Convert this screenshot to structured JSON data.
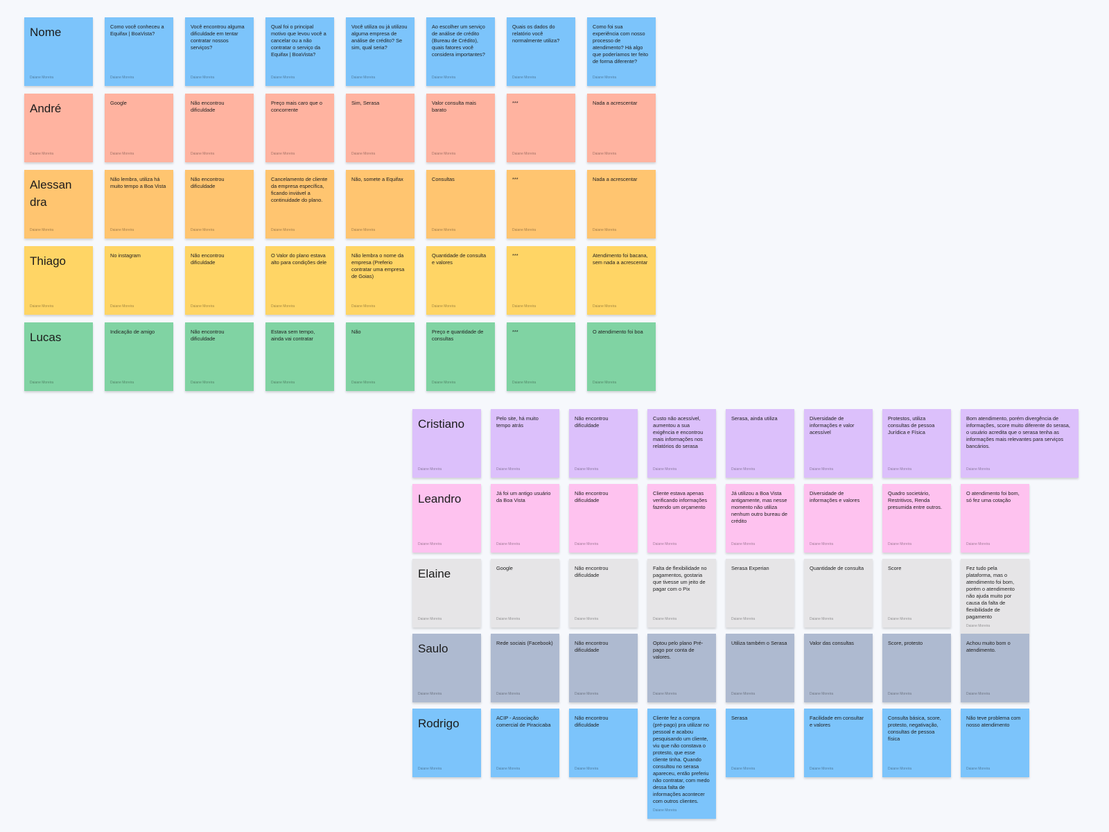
{
  "colors": {
    "blue": "#7cc4fb",
    "salmon": "#ffb3a0",
    "orange": "#ffc570",
    "yellow": "#ffd565",
    "green": "#80d3a3",
    "purple": "#dcc0fb",
    "pink": "#fec2ef",
    "gray": "#e6e5e7",
    "slate": "#aebad0"
  },
  "author": "Daiane Moreira",
  "groups": [
    {
      "rows": [
        {
          "color": "blue",
          "cells": [
            "Nome",
            "Como você conheceu a Equifax | BoaVista?",
            "Você encontrou alguma dificuldade em tentar contratar nossos serviços?",
            "Qual foi o principal motivo que levou você a cancelar ou a não contratar o serviço da Equifax | BoaVista?",
            "Você utiliza ou já utilizou alguma empresa de análise de crédito? Se sim, qual seria?",
            "Ao escolher um serviço de análise de crédito (Bureau de Crédito), quais fatores você considera importantes?",
            "Quais os dados do relatório você normalmente utiliza?",
            "Como foi sua experiência com nosso processo de atendimento? Há algo que poderíamos ter feito de forma diferente?"
          ]
        },
        {
          "color": "salmon",
          "cells": [
            "André",
            "Google",
            "Não encontrou dificuldade",
            "Preço mais caro que o concorrente",
            "Sim, Serasa",
            "Valor consulta mais barato",
            "***",
            "Nada a acrescentar"
          ]
        },
        {
          "color": "orange",
          "cells": [
            "Alessan dra",
            "Não lembra, utiliza há muito tempo a Boa Vista",
            "Não encontrou dificuldade",
            "Cancelamento de cliente da empresa específica, ficando inviável a continuidade do plano.",
            "Não, somete a Equifax",
            "Consultas",
            "***",
            "Nada a acrescentar"
          ]
        },
        {
          "color": "yellow",
          "cells": [
            "Thiago",
            "No instagram",
            "Não encontrou dificuldade",
            "O Valor do plano estava alto para condições dele",
            "Não lembra o nome da empresa (Preferio contratar uma empresa de Goias)",
            "Quantidade de consulta e valores",
            "***",
            "Atendimento foi bacana, sem nada a acrescentar"
          ]
        },
        {
          "color": "green",
          "cells": [
            "Lucas",
            "Indicação de amigo",
            "Não encontrou dificuldade",
            "Estava sem tempo, ainda vai contratar",
            "Não",
            "Preço e quantidade de consultas",
            "***",
            "O atendimento foi boa"
          ]
        }
      ]
    },
    {
      "rows": [
        {
          "color": "purple",
          "cells": [
            "Cristiano",
            "Pelo site, há muito tempo atrás",
            "Não encontrou dificuldade",
            "Custo não acessível, aumentou a sua exigência e encontrou mais informações nos relatórios do serasa",
            "Serasa, ainda utiliza",
            "Diversidade de informações e valor acessível",
            "Protestos, utiliza consultas de pessoa Jurídica e Física",
            "Bom atendimento, porém divergência de informações, score muito diferente do serasa, o usuário acredita que o serasa tenha as informações mais relevantes para serviços bancários."
          ]
        },
        {
          "color": "pink",
          "cells": [
            "Leandro",
            "Já foi um antigo usuário da Boa Vista",
            "Não encontrou dificuldade",
            "Cliente estava apenas verificando informações fazendo um orçamento",
            "Já utilizou a Boa Vista antigamente, mas nesse momento não utiliza nenhum outro bureau de crédito",
            "Diversidade de informações e valores",
            "Quadro societário, Restritivos, Renda presumida entre outros.",
            "O atendimento foi bom, só fez uma cotação"
          ]
        },
        {
          "color": "gray",
          "cells": [
            "Elaine",
            "Google",
            "Não encontrou dificuldade",
            "Falta de flexibilidade no pagamentos, gostaria que tivesse um jeito de pagar com o Pix",
            "Serasa Experian",
            "Quantidade de consulta",
            "Score",
            "Fez tudo pela plataforma, mas o atendimento foi bom, porém o atendimento não ajuda muito por causa da falta de flexibilidade de pagamento"
          ]
        },
        {
          "color": "slate",
          "cells": [
            "Saulo",
            "Rede sociais (Facebook)",
            "Não encontrou dificuldade",
            "Optou pelo plano Pré-pago por conta de valores.",
            "Utiliza também o Serasa",
            "Valor das consultas",
            "Score, protesto",
            "Achou muito bom o atendimento."
          ]
        },
        {
          "color": "blue",
          "cells": [
            "Rodrigo",
            "ACIP - Associação comercial de Piracicaba",
            "Não encontrou dificuldade",
            "Cliente fez a compra (pré-pago) pra utilizar no pessoal e acabou pesquisando um cliente, viu que não constava o protesto, que esse cliente tinha. Quando consultou no serasa apareceu, então preferiu não contratar, com medo dessa falta de informações acontecer com outros clientes.",
            "Serasa",
            "Facilidade em consultar e valores",
            "Consulta básica, score, protesto, negativação, consultas de pessoa física",
            "Não teve problema com nosso atendimento"
          ]
        }
      ]
    }
  ]
}
